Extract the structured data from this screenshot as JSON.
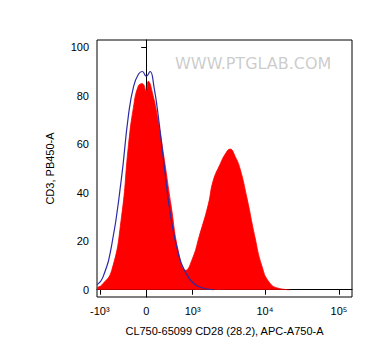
{
  "chart_data": {
    "type": "area",
    "x_label": "CL750-65099 CD28 (28.2), APC-A750-A",
    "y_label": "CD3, PB450-A",
    "annotations": [
      "WWW.PTGLAB.COM"
    ],
    "xlim": [
      -1100,
      150000
    ],
    "xticks": [
      {
        "value": -1000,
        "label": "-10³"
      },
      0,
      {
        "value": 1000,
        "label": "10³"
      },
      {
        "value": 10000,
        "label": "10⁴"
      },
      {
        "value": 100000,
        "label": "10⁵"
      }
    ],
    "ylim": [
      -3,
      103
    ],
    "yticks": [
      0,
      20,
      40,
      60,
      80,
      100
    ],
    "grid": false,
    "series": [
      {
        "type": "area",
        "color": "#ff0000",
        "x": [
          -1100,
          -930,
          -645,
          -423,
          -288,
          -205,
          -124,
          -61,
          0,
          31,
          108,
          187,
          288,
          424,
          597,
          778,
          998,
          1250,
          1680,
          1975,
          2480,
          2900,
          3380,
          3950,
          4600,
          5700,
          7300,
          9060,
          11500,
          15700,
          21500
        ],
        "values": [
          1,
          2,
          8,
          30,
          60,
          75,
          84,
          85,
          82,
          86,
          80,
          70,
          55,
          35,
          15,
          8,
          13,
          22,
          35,
          45,
          52,
          56,
          58,
          55,
          50,
          38,
          22,
          10,
          3,
          0.5,
          0
        ]
      },
      {
        "type": "line",
        "color": "#2b2ba6",
        "x": [
          -1100,
          -900,
          -650,
          -430,
          -290,
          -200,
          -120,
          -60,
          0,
          60,
          120,
          200,
          290,
          420,
          600,
          780,
          1000,
          1300,
          2000
        ],
        "values": [
          2,
          5,
          18,
          45,
          72,
          84,
          89,
          90,
          88,
          90,
          84,
          70,
          52,
          30,
          14,
          7,
          3,
          1,
          0
        ]
      }
    ]
  }
}
